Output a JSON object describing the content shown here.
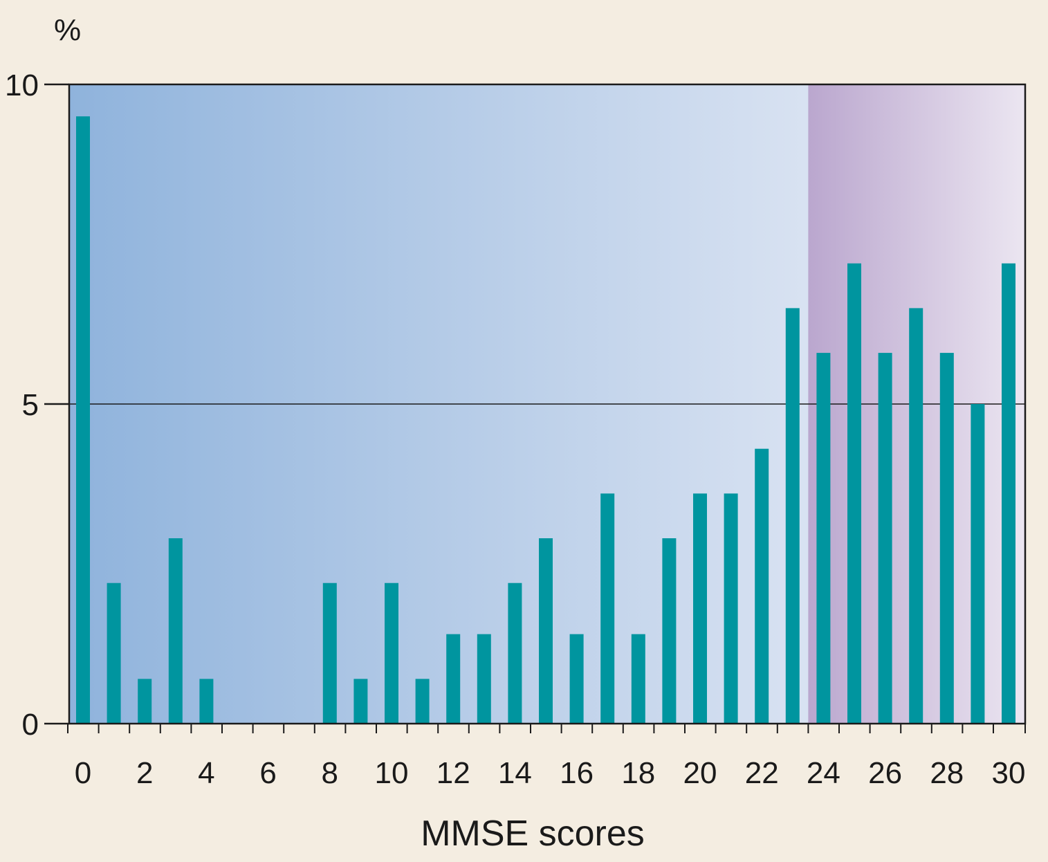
{
  "chart_data": {
    "type": "bar",
    "title": "",
    "xlabel": "MMSE scores",
    "ylabel": "%",
    "ylim": [
      0,
      10
    ],
    "xlim": [
      0,
      30
    ],
    "y_ticks": [
      0,
      5,
      10
    ],
    "x_tick_labels": [
      0,
      2,
      4,
      6,
      8,
      10,
      12,
      14,
      16,
      18,
      20,
      22,
      24,
      26,
      28,
      30
    ],
    "gridlines_y": [
      5
    ],
    "shaded_region": {
      "from": 24,
      "to": 30
    },
    "x": [
      0,
      1,
      2,
      3,
      4,
      5,
      6,
      7,
      8,
      9,
      10,
      11,
      12,
      13,
      14,
      15,
      16,
      17,
      18,
      19,
      20,
      21,
      22,
      23,
      24,
      25,
      26,
      27,
      28,
      29,
      30
    ],
    "values": [
      9.5,
      2.2,
      0.7,
      2.9,
      0.7,
      0,
      0,
      0,
      2.2,
      0.7,
      2.2,
      0.7,
      1.4,
      1.4,
      2.2,
      2.9,
      1.4,
      3.6,
      1.4,
      2.9,
      3.6,
      3.6,
      4.3,
      6.5,
      5.8,
      7.2,
      5.8,
      6.5,
      5.8,
      5.0,
      7.2
    ]
  },
  "colors": {
    "bar": "#00959f",
    "panel_left": "#8fb3dc",
    "panel_right": "#eef0f8",
    "shade_left": "#b59cc8",
    "shade_right": "#ebe4f0",
    "axis": "#1a1a1a",
    "page_bg": "#f4ede1"
  }
}
